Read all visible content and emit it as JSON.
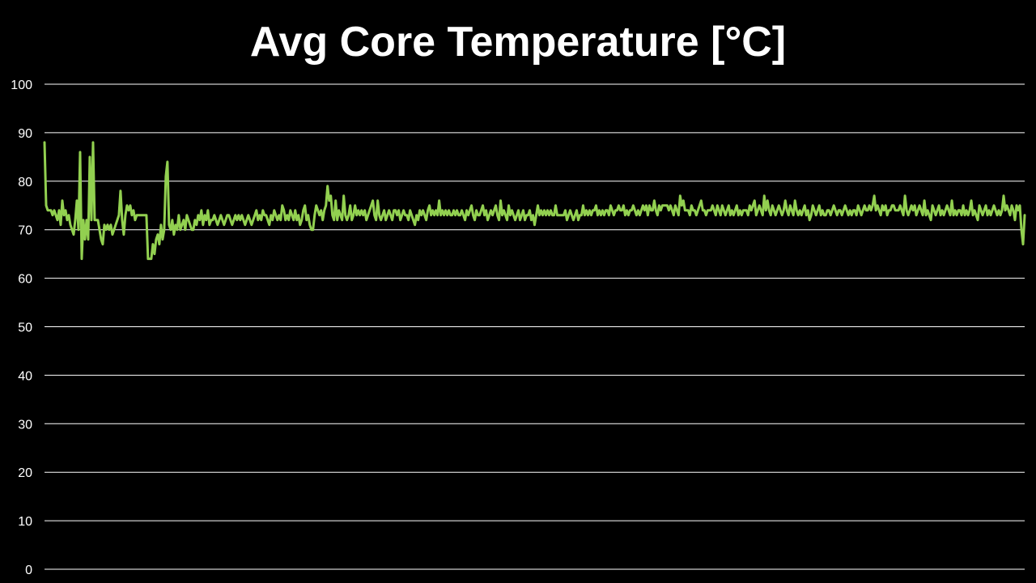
{
  "chart_data": {
    "type": "line",
    "title": "Avg Core Temperature [°C]",
    "xlabel": "",
    "ylabel": "",
    "ylim": [
      0,
      100
    ],
    "yticks": [
      0,
      10,
      20,
      30,
      40,
      50,
      60,
      70,
      80,
      90,
      100
    ],
    "grid": true,
    "legend": "none",
    "colors": {
      "background": "#000000",
      "line": "#92d050",
      "grid": "#ffffff",
      "text": "#ffffff"
    },
    "series": [
      {
        "color": "#92d050",
        "values": [
          88,
          75,
          74,
          74,
          74,
          73,
          74,
          73,
          72,
          74,
          71,
          76,
          73,
          74,
          72,
          73,
          71,
          70,
          69,
          72,
          76,
          70,
          86,
          64,
          72,
          68,
          72,
          68,
          85,
          72,
          88,
          72,
          72,
          72,
          70,
          68,
          67,
          71,
          70,
          71,
          70,
          71,
          69,
          70,
          71,
          72,
          73,
          78,
          72,
          69,
          73,
          75,
          74,
          75,
          73,
          74,
          72,
          73,
          73,
          73,
          73,
          73,
          73,
          73,
          64,
          64,
          64,
          67,
          65,
          68,
          69,
          67,
          71,
          68,
          70,
          81,
          84,
          71,
          70,
          72,
          69,
          71,
          70,
          73,
          70,
          71,
          72,
          70,
          73,
          72,
          71,
          70,
          70,
          72,
          71,
          73,
          72,
          74,
          71,
          73,
          72,
          74,
          71,
          72,
          72,
          73,
          72,
          71,
          72,
          73,
          72,
          71,
          72,
          73,
          73,
          72,
          71,
          72,
          73,
          72,
          73,
          72,
          73,
          72,
          71,
          72,
          73,
          72,
          71,
          72,
          73,
          74,
          72,
          73,
          72,
          74,
          73,
          73,
          72,
          71,
          73,
          72,
          74,
          73,
          72,
          73,
          72,
          75,
          74,
          72,
          73,
          72,
          74,
          73,
          72,
          74,
          72,
          73,
          71,
          72,
          74,
          75,
          72,
          73,
          71,
          70,
          70,
          73,
          75,
          74,
          73,
          74,
          72,
          74,
          75,
          79,
          76,
          77,
          73,
          72,
          76,
          72,
          74,
          73,
          72,
          77,
          73,
          72,
          73,
          75,
          72,
          73,
          75,
          73,
          74,
          73,
          74,
          73,
          74,
          72,
          73,
          74,
          75,
          76,
          73,
          72,
          76,
          73,
          72,
          73,
          74,
          72,
          73,
          74,
          73,
          72,
          74,
          74,
          73,
          74,
          72,
          73,
          74,
          73,
          73,
          72,
          74,
          73,
          72,
          71,
          73,
          72,
          74,
          73,
          74,
          73,
          72,
          74,
          75,
          73,
          74,
          73,
          74,
          73,
          76,
          73,
          74,
          73,
          74,
          73,
          74,
          73,
          73,
          74,
          73,
          74,
          73,
          73,
          74,
          73,
          72,
          74,
          73,
          74,
          75,
          73,
          72,
          74,
          73,
          73,
          74,
          75,
          73,
          74,
          72,
          73,
          74,
          73,
          74,
          75,
          73,
          72,
          76,
          73,
          74,
          73,
          72,
          75,
          73,
          74,
          73,
          72,
          73,
          74,
          72,
          73,
          74,
          72,
          73,
          73,
          74,
          72,
          73,
          71,
          73,
          75,
          73,
          74,
          73,
          74,
          73,
          74,
          73,
          74,
          73,
          73,
          75,
          73,
          73,
          73,
          73,
          73,
          74,
          72,
          73,
          74,
          73,
          72,
          73,
          74,
          72,
          73,
          73,
          75,
          73,
          74,
          73,
          74,
          73,
          74,
          74,
          75,
          73,
          74,
          73,
          74,
          73,
          74,
          74,
          73,
          75,
          74,
          73,
          74,
          74,
          75,
          74,
          74,
          75,
          73,
          74,
          73,
          74,
          74,
          75,
          74,
          73,
          74,
          73,
          74,
          75,
          74,
          75,
          73,
          75,
          74,
          74,
          76,
          74,
          73,
          75,
          74,
          75,
          75,
          75,
          75,
          74,
          75,
          74,
          73,
          75,
          74,
          73,
          77,
          75,
          76,
          74,
          74,
          74,
          73,
          75,
          74,
          74,
          73,
          74,
          75,
          76,
          74,
          74,
          73,
          74,
          74,
          74,
          75,
          74,
          73,
          75,
          74,
          73,
          75,
          74,
          73,
          74,
          75,
          73,
          74,
          73,
          74,
          75,
          73,
          74,
          73,
          74,
          74,
          74,
          73,
          75,
          74,
          75,
          76,
          73,
          74,
          75,
          74,
          73,
          77,
          74,
          76,
          74,
          73,
          75,
          74,
          73,
          74,
          75,
          74,
          73,
          74,
          76,
          74,
          73,
          75,
          74,
          73,
          76,
          74,
          73,
          74,
          73,
          74,
          75,
          73,
          74,
          72,
          73,
          75,
          74,
          73,
          74,
          75,
          73,
          74,
          73,
          73,
          74,
          74,
          73,
          74,
          75,
          74,
          73,
          74,
          74,
          73,
          74,
          75,
          74,
          73,
          74,
          73,
          74,
          74,
          73,
          75,
          74,
          73,
          74,
          75,
          74,
          74,
          75,
          74,
          75,
          77,
          74,
          75,
          74,
          73,
          75,
          74,
          75,
          73,
          74,
          74,
          75,
          75,
          74,
          74,
          74,
          75,
          74,
          73,
          77,
          74,
          73,
          74,
          75,
          74,
          75,
          73,
          74,
          75,
          74,
          73,
          76,
          73,
          74,
          73,
          72,
          75,
          74,
          73,
          74,
          75,
          73,
          74,
          73,
          74,
          75,
          74,
          73,
          76,
          73,
          74,
          73,
          74,
          74,
          73,
          75,
          73,
          74,
          73,
          74,
          76,
          73,
          74,
          73,
          72,
          75,
          74,
          73,
          74,
          75,
          73,
          74,
          73,
          74,
          75,
          74,
          73,
          74,
          73,
          74,
          77,
          74,
          75,
          74,
          73,
          75,
          74,
          72,
          75,
          74,
          75,
          70,
          67,
          73
        ]
      }
    ]
  }
}
